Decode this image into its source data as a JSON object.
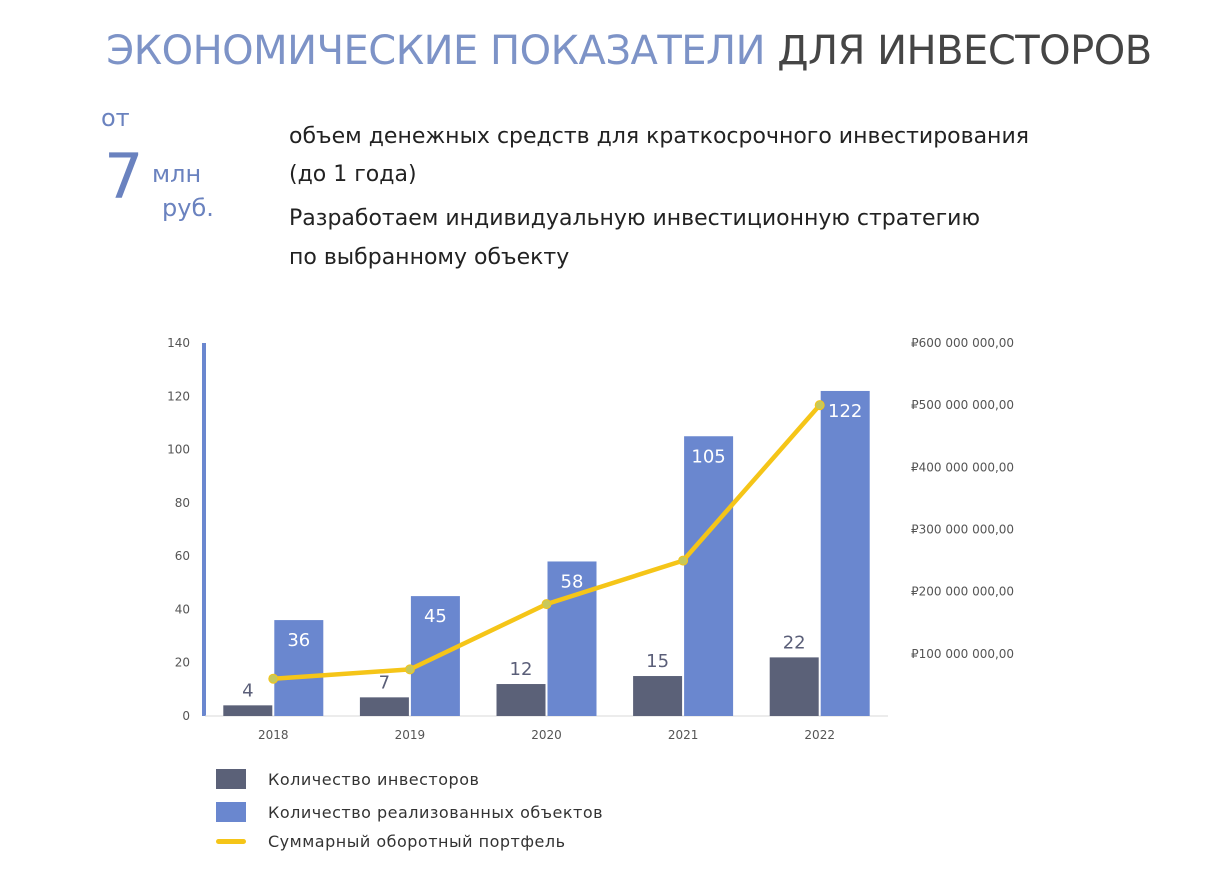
{
  "header": {
    "title_accent": "ЭКОНОМИЧЕСКИЕ ПОКАЗАТЕЛИ",
    "title_rest": "ДЛЯ ИНВЕСТОРОВ"
  },
  "highlight": {
    "prefix": "от",
    "number": "7",
    "unit_line1": "млн",
    "unit_line2": "руб."
  },
  "description": {
    "line1": "объем денежных средств для   краткосрочного инвестирования",
    "line2": "(до 1 года)",
    "line3": "Разработаем индивидуальную инвестиционную  стратегию",
    "line4": "по выбранному объекту"
  },
  "colors": {
    "accent": "#7d93c7",
    "investors": "#5b6178",
    "objects": "#6a87cf",
    "portfolio": "#f5c518"
  },
  "chart_data": {
    "type": "bar",
    "categories": [
      "2018",
      "2019",
      "2020",
      "2021",
      "2022"
    ],
    "series": [
      {
        "name": "Количество инвесторов",
        "type": "bar",
        "axis": "left",
        "values": [
          4,
          7,
          12,
          15,
          22
        ]
      },
      {
        "name": "Количество реализованных объектов",
        "type": "bar",
        "axis": "left",
        "values": [
          36,
          45,
          58,
          105,
          122
        ]
      },
      {
        "name": "Суммарный оборотный портфель",
        "type": "line",
        "axis": "right",
        "values": [
          60000000,
          75000000,
          180000000,
          250000000,
          500000000
        ]
      }
    ],
    "ylim": [
      0,
      140
    ],
    "yticks": [
      "0",
      "20",
      "40",
      "60",
      "80",
      "100",
      "120",
      "140"
    ],
    "y2lim": [
      0,
      600000000
    ],
    "y2ticks": [
      "₽100 000 000,00",
      "₽200 000 000,00",
      "₽300 000 000,00",
      "₽400 000 000,00",
      "₽500 000 000,00",
      "₽600 000 000,00"
    ],
    "legend_position": "bottom-left"
  }
}
